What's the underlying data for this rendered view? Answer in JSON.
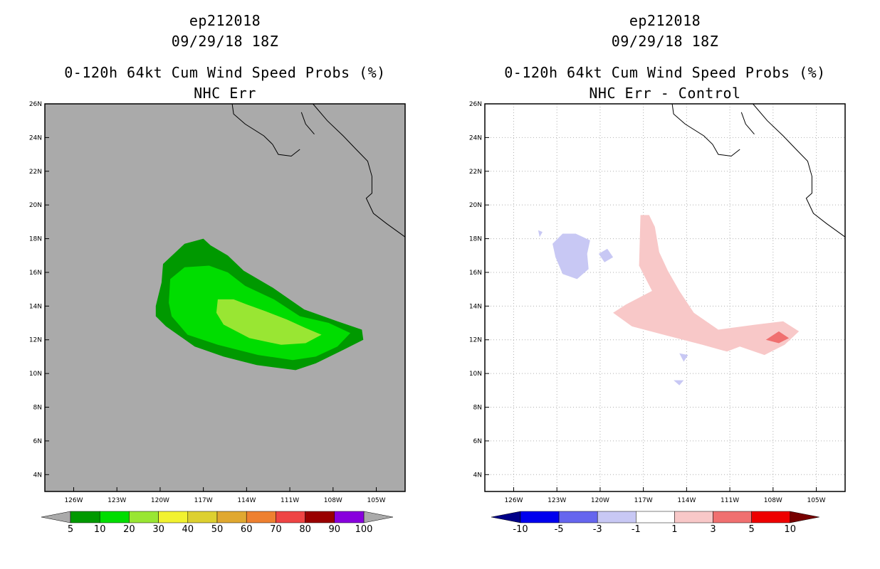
{
  "chart_data": [
    {
      "type": "heatmap",
      "title_lines": [
        "ep212018",
        "09/29/18 18Z",
        "0-120h 64kt Cum Wind Speed Probs (%)",
        "NHC Err"
      ],
      "x_ticks": [
        "126W",
        "123W",
        "120W",
        "117W",
        "114W",
        "111W",
        "108W",
        "105W"
      ],
      "x_tick_values": [
        -126,
        -123,
        -120,
        -117,
        -114,
        -111,
        -108,
        -105
      ],
      "y_ticks": [
        "4N",
        "6N",
        "8N",
        "10N",
        "12N",
        "14N",
        "16N",
        "18N",
        "20N",
        "22N",
        "24N",
        "26N"
      ],
      "y_tick_values": [
        4,
        6,
        8,
        10,
        12,
        14,
        16,
        18,
        20,
        22,
        24,
        26
      ],
      "xlim": [
        -128,
        -103
      ],
      "ylim": [
        3,
        26
      ],
      "background_color": "#aaaaaa",
      "colorbar": {
        "labels": [
          "5",
          "10",
          "20",
          "30",
          "40",
          "50",
          "60",
          "70",
          "80",
          "90",
          "100"
        ],
        "colors": [
          "#009900",
          "#00dd00",
          "#99e633",
          "#f2f230",
          "#ddd030",
          "#e0a830",
          "#ee8030",
          "#ee4444",
          "#990000",
          "#8800dd"
        ],
        "end_colors": [
          "#aaaaaa",
          "#aaaaaa"
        ]
      },
      "contours": [
        {
          "level": "5-10",
          "color": "#009900",
          "polygon": [
            [
              -120.3,
              14
            ],
            [
              -119.9,
              15.4
            ],
            [
              -119.8,
              16.5
            ],
            [
              -118.3,
              17.7
            ],
            [
              -117,
              18
            ],
            [
              -116.5,
              17.6
            ],
            [
              -115.3,
              17
            ],
            [
              -114.2,
              16.1
            ],
            [
              -112.2,
              15.1
            ],
            [
              -110,
              13.8
            ],
            [
              -107.7,
              13.1
            ],
            [
              -106,
              12.6
            ],
            [
              -105.9,
              12
            ],
            [
              -107.3,
              11.4
            ],
            [
              -109.2,
              10.6
            ],
            [
              -110.6,
              10.2
            ],
            [
              -113.3,
              10.5
            ],
            [
              -115.6,
              11
            ],
            [
              -117.6,
              11.6
            ],
            [
              -119.6,
              12.8
            ],
            [
              -120.3,
              13.4
            ]
          ]
        },
        {
          "level": "10-20",
          "color": "#00dd00",
          "polygon": [
            [
              -119.4,
              14.2
            ],
            [
              -119.3,
              15.6
            ],
            [
              -118.3,
              16.3
            ],
            [
              -116.6,
              16.4
            ],
            [
              -115.3,
              16
            ],
            [
              -114.1,
              15.2
            ],
            [
              -112.1,
              14.4
            ],
            [
              -110.3,
              13.4
            ],
            [
              -108.3,
              13
            ],
            [
              -106.8,
              12.4
            ],
            [
              -107.7,
              11.6
            ],
            [
              -109.2,
              11
            ],
            [
              -110.8,
              10.8
            ],
            [
              -113.2,
              11.1
            ],
            [
              -116,
              11.7
            ],
            [
              -118.1,
              12.3
            ],
            [
              -119.2,
              13.4
            ]
          ]
        },
        {
          "level": "20-30",
          "color": "#99e633",
          "polygon": [
            [
              -116.1,
              13.6
            ],
            [
              -116,
              14.4
            ],
            [
              -114.9,
              14.4
            ],
            [
              -114,
              14.1
            ],
            [
              -112.7,
              13.7
            ],
            [
              -111.2,
              13.2
            ],
            [
              -109.9,
              12.7
            ],
            [
              -108.8,
              12.3
            ],
            [
              -109.9,
              11.8
            ],
            [
              -111.6,
              11.7
            ],
            [
              -113.8,
              12.1
            ],
            [
              -115.6,
              12.9
            ]
          ]
        }
      ]
    },
    {
      "type": "heatmap",
      "title_lines": [
        "ep212018",
        "09/29/18 18Z",
        "0-120h 64kt Cum Wind Speed Probs (%)",
        "NHC Err - Control"
      ],
      "x_ticks": [
        "126W",
        "123W",
        "120W",
        "117W",
        "114W",
        "111W",
        "108W",
        "105W"
      ],
      "x_tick_values": [
        -126,
        -123,
        -120,
        -117,
        -114,
        -111,
        -108,
        -105
      ],
      "y_ticks": [
        "4N",
        "6N",
        "8N",
        "10N",
        "12N",
        "14N",
        "16N",
        "18N",
        "20N",
        "22N",
        "24N",
        "26N"
      ],
      "y_tick_values": [
        4,
        6,
        8,
        10,
        12,
        14,
        16,
        18,
        20,
        22,
        24,
        26
      ],
      "xlim": [
        -128,
        -103
      ],
      "ylim": [
        3,
        26
      ],
      "background_color": "#ffffff",
      "grid": true,
      "colorbar": {
        "labels": [
          "-10",
          "-5",
          "-3",
          "-1",
          "1",
          "3",
          "5",
          "10"
        ],
        "colors": [
          "#0000ee",
          "#6666ee",
          "#c8c8f4",
          "#ffffff",
          "#f8c8c8",
          "#f07070",
          "#ee0000"
        ],
        "end_colors": [
          "#000088",
          "#770000"
        ]
      },
      "contours": [
        {
          "level": "-3--1",
          "color": "#c8c8f4",
          "polygon": [
            [
              -123.3,
              17.7
            ],
            [
              -122.6,
              18.3
            ],
            [
              -121.7,
              18.3
            ],
            [
              -120.7,
              17.9
            ],
            [
              -120.9,
              17.1
            ],
            [
              -120.8,
              16.2
            ],
            [
              -121.6,
              15.6
            ],
            [
              -122.6,
              15.9
            ],
            [
              -123.1,
              16.9
            ]
          ]
        },
        {
          "level": "-3--1",
          "color": "#c8c8f4",
          "polygon": [
            [
              -120.1,
              17.1
            ],
            [
              -119.5,
              17.4
            ],
            [
              -119.1,
              16.9
            ],
            [
              -119.7,
              16.6
            ]
          ]
        },
        {
          "level": "-3--1",
          "color": "#c8c8f4",
          "polygon": [
            [
              -124.3,
              18.5
            ],
            [
              -124.0,
              18.4
            ],
            [
              -124.2,
              18.1
            ]
          ]
        },
        {
          "level": "-3--1",
          "color": "#c8c8f4",
          "polygon": [
            [
              -114.5,
              11.2
            ],
            [
              -113.9,
              11.1
            ],
            [
              -114.2,
              10.7
            ]
          ]
        },
        {
          "level": "-3--1",
          "color": "#c8c8f4",
          "polygon": [
            [
              -114.9,
              9.6
            ],
            [
              -114.2,
              9.6
            ],
            [
              -114.5,
              9.3
            ]
          ]
        },
        {
          "level": "1-3",
          "color": "#f8c8c8",
          "polygon": [
            [
              -117.2,
              19.4
            ],
            [
              -116.6,
              19.4
            ],
            [
              -116.2,
              18.7
            ],
            [
              -115.9,
              17.2
            ],
            [
              -115.3,
              16.1
            ],
            [
              -114.5,
              14.9
            ],
            [
              -113.5,
              13.6
            ],
            [
              -111.8,
              12.6
            ],
            [
              -109.2,
              12.9
            ],
            [
              -107.3,
              13.1
            ],
            [
              -106.2,
              12.5
            ],
            [
              -107.2,
              11.7
            ],
            [
              -108.6,
              11.1
            ],
            [
              -110.3,
              11.6
            ],
            [
              -111.2,
              11.3
            ],
            [
              -112.9,
              11.7
            ],
            [
              -115.6,
              12.3
            ],
            [
              -117.8,
              12.8
            ],
            [
              -119.1,
              13.6
            ],
            [
              -118.2,
              14.1
            ],
            [
              -116.4,
              14.9
            ],
            [
              -117.3,
              16.4
            ]
          ]
        },
        {
          "level": "3-5",
          "color": "#f07070",
          "polygon": [
            [
              -108.5,
              12.0
            ],
            [
              -107.6,
              12.5
            ],
            [
              -106.9,
              12.1
            ],
            [
              -107.6,
              11.8
            ]
          ]
        }
      ]
    }
  ]
}
